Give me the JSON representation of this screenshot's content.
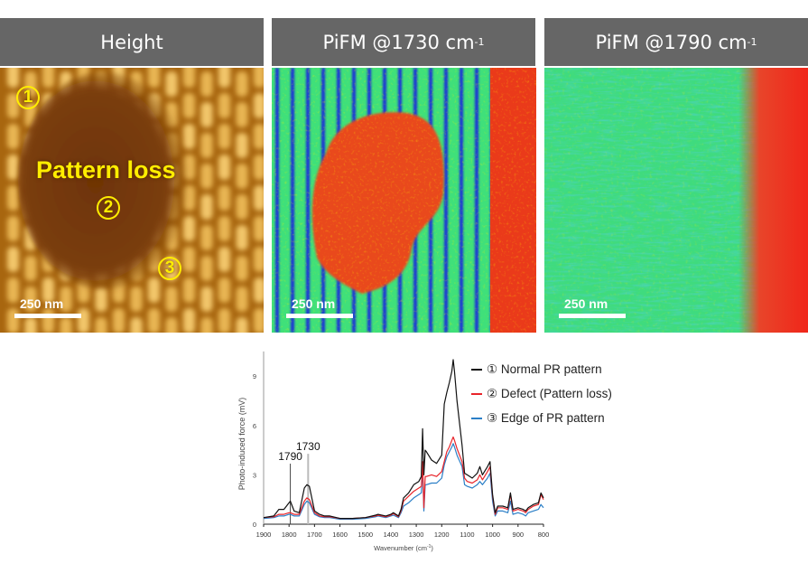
{
  "panels": [
    {
      "title": "Height",
      "title_sup": "",
      "scale_label": "250 nm"
    },
    {
      "title": "PiFM @1730 cm",
      "title_sup": "-1",
      "scale_label": "250 nm"
    },
    {
      "title": "PiFM @1790 cm",
      "title_sup": "-1",
      "scale_label": "250 nm"
    }
  ],
  "height_annotations": {
    "pattern_loss": "Pattern loss",
    "markers": [
      "1",
      "2",
      "3"
    ]
  },
  "colors": {
    "header_bg": "#666666",
    "marker_yellow": "#ffee00",
    "series_normal": "#111111",
    "series_defect": "#e8242a",
    "series_edge": "#2b7fc7"
  },
  "chart_data": {
    "type": "line",
    "title": "",
    "xlabel": "Wavenumber (cm-1)",
    "ylabel": "Photo-induced force (mV)",
    "xlim": [
      1900,
      800
    ],
    "ylim": [
      0,
      10.5
    ],
    "x_ticks": [
      "1900",
      "1800",
      "1700",
      "1600",
      "1500",
      "1400",
      "1300",
      "1200",
      "1100",
      "1000",
      "900",
      "800"
    ],
    "y_ticks": [
      "0",
      "3",
      "6",
      "9"
    ],
    "annotations": [
      {
        "label": "1790",
        "x": 1795
      },
      {
        "label": "1730",
        "x": 1725
      }
    ],
    "x": [
      1900,
      1860,
      1840,
      1820,
      1800,
      1795,
      1780,
      1760,
      1740,
      1730,
      1720,
      1700,
      1680,
      1660,
      1640,
      1600,
      1550,
      1500,
      1460,
      1450,
      1420,
      1400,
      1390,
      1370,
      1360,
      1350,
      1330,
      1310,
      1290,
      1280,
      1275,
      1270,
      1265,
      1260,
      1240,
      1220,
      1200,
      1190,
      1180,
      1170,
      1160,
      1155,
      1150,
      1140,
      1120,
      1110,
      1100,
      1080,
      1060,
      1050,
      1040,
      1020,
      1010,
      1000,
      990,
      980,
      960,
      940,
      930,
      920,
      900,
      880,
      870,
      860,
      840,
      820,
      810,
      800
    ],
    "series": [
      {
        "name": "① Normal PR pattern",
        "values": [
          0.4,
          0.5,
          0.9,
          0.9,
          1.3,
          1.4,
          0.8,
          0.7,
          2.2,
          2.4,
          2.3,
          0.8,
          0.6,
          0.5,
          0.5,
          0.35,
          0.35,
          0.4,
          0.55,
          0.6,
          0.5,
          0.6,
          0.7,
          0.5,
          0.9,
          1.6,
          1.9,
          2.4,
          2.6,
          2.9,
          5.8,
          3.0,
          4.5,
          4.4,
          3.9,
          3.7,
          4.2,
          7.3,
          8.0,
          8.6,
          9.3,
          10.0,
          9.3,
          7.5,
          4.8,
          3.1,
          3.0,
          2.8,
          3.1,
          3.5,
          3.0,
          3.5,
          3.8,
          1.8,
          0.7,
          1.1,
          1.1,
          1.0,
          1.9,
          0.9,
          1.0,
          0.9,
          0.8,
          1.0,
          1.2,
          1.3,
          1.9,
          1.6
        ]
      },
      {
        "name": "② Defect (Pattern loss)",
        "values": [
          0.4,
          0.45,
          0.6,
          0.6,
          0.7,
          0.7,
          0.6,
          0.6,
          1.4,
          1.6,
          1.5,
          0.7,
          0.5,
          0.45,
          0.45,
          0.35,
          0.35,
          0.4,
          0.5,
          0.55,
          0.45,
          0.55,
          0.65,
          0.45,
          0.8,
          1.4,
          1.7,
          2.0,
          2.2,
          2.3,
          3.8,
          1.0,
          2.9,
          2.9,
          3.0,
          2.9,
          3.2,
          3.8,
          4.4,
          4.7,
          5.1,
          5.3,
          5.1,
          4.6,
          3.8,
          2.8,
          2.6,
          2.5,
          2.7,
          3.0,
          2.7,
          3.2,
          3.5,
          1.7,
          0.6,
          1.0,
          1.0,
          0.9,
          1.8,
          0.8,
          0.9,
          0.8,
          0.7,
          0.9,
          1.1,
          1.2,
          1.8,
          1.5
        ]
      },
      {
        "name": "③ Edge of PR pattern",
        "values": [
          0.35,
          0.4,
          0.5,
          0.5,
          0.6,
          0.6,
          0.5,
          0.5,
          1.2,
          1.4,
          1.3,
          0.6,
          0.45,
          0.4,
          0.4,
          0.3,
          0.3,
          0.35,
          0.45,
          0.5,
          0.4,
          0.5,
          0.55,
          0.4,
          0.7,
          1.1,
          1.3,
          1.6,
          1.8,
          1.9,
          3.4,
          0.8,
          2.4,
          2.4,
          2.5,
          2.5,
          2.8,
          3.6,
          4.1,
          4.4,
          4.7,
          4.9,
          4.7,
          4.2,
          3.5,
          2.4,
          2.3,
          2.2,
          2.4,
          2.6,
          2.4,
          2.8,
          3.1,
          1.4,
          0.5,
          0.8,
          0.8,
          0.7,
          1.4,
          0.6,
          0.7,
          0.6,
          0.5,
          0.7,
          0.8,
          0.9,
          1.2,
          1.0
        ]
      }
    ],
    "legend_position": "top-right",
    "grid": false
  }
}
